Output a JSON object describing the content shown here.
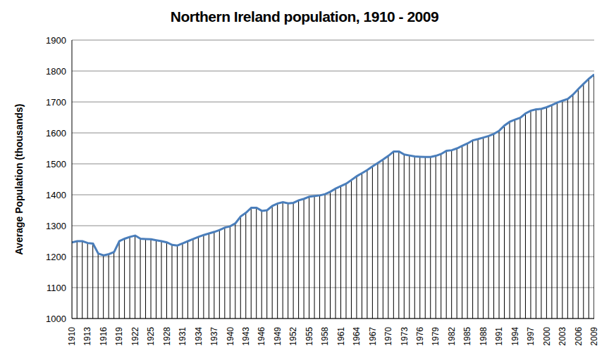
{
  "chart_data": {
    "type": "line",
    "title": "Northern Ireland population, 1910 - 2009",
    "y_label": "Average Population (thousands)",
    "color": "#4a7ebb",
    "marker": "dropline",
    "grid": true,
    "x": [
      1910,
      1911,
      1912,
      1913,
      1914,
      1915,
      1916,
      1917,
      1918,
      1919,
      1920,
      1921,
      1922,
      1923,
      1924,
      1925,
      1926,
      1927,
      1928,
      1929,
      1930,
      1931,
      1932,
      1933,
      1934,
      1935,
      1936,
      1937,
      1938,
      1939,
      1940,
      1941,
      1942,
      1943,
      1944,
      1945,
      1946,
      1947,
      1948,
      1949,
      1950,
      1951,
      1952,
      1953,
      1954,
      1955,
      1956,
      1957,
      1958,
      1959,
      1960,
      1961,
      1962,
      1963,
      1964,
      1965,
      1966,
      1967,
      1968,
      1969,
      1970,
      1971,
      1972,
      1973,
      1974,
      1975,
      1976,
      1977,
      1978,
      1979,
      1980,
      1981,
      1982,
      1983,
      1984,
      1985,
      1986,
      1987,
      1988,
      1989,
      1990,
      1991,
      1992,
      1993,
      1994,
      1995,
      1996,
      1997,
      1998,
      1999,
      2000,
      2001,
      2002,
      2003,
      2004,
      2005,
      2006,
      2007,
      2008,
      2009
    ],
    "values": [
      1246,
      1250,
      1250,
      1244,
      1242,
      1210,
      1204,
      1208,
      1215,
      1250,
      1258,
      1264,
      1268,
      1258,
      1257,
      1256,
      1253,
      1250,
      1246,
      1238,
      1236,
      1243,
      1250,
      1257,
      1264,
      1270,
      1275,
      1280,
      1286,
      1294,
      1298,
      1308,
      1330,
      1342,
      1358,
      1358,
      1348,
      1350,
      1364,
      1372,
      1376,
      1372,
      1374,
      1382,
      1387,
      1394,
      1396,
      1398,
      1402,
      1410,
      1420,
      1428,
      1436,
      1448,
      1460,
      1470,
      1480,
      1492,
      1503,
      1514,
      1526,
      1540,
      1540,
      1530,
      1527,
      1524,
      1523,
      1522,
      1522,
      1526,
      1532,
      1542,
      1544,
      1550,
      1558,
      1566,
      1576,
      1580,
      1585,
      1590,
      1597,
      1607,
      1624,
      1636,
      1643,
      1649,
      1663,
      1672,
      1676,
      1678,
      1683,
      1690,
      1698,
      1704,
      1710,
      1724,
      1742,
      1759,
      1775,
      1789
    ],
    "xlim": [
      1910,
      2009
    ],
    "xticks": [
      1910,
      1913,
      1916,
      1919,
      1922,
      1925,
      1928,
      1931,
      1934,
      1937,
      1940,
      1943,
      1946,
      1949,
      1952,
      1955,
      1958,
      1961,
      1964,
      1967,
      1970,
      1973,
      1976,
      1979,
      1982,
      1985,
      1988,
      1991,
      1994,
      1997,
      2000,
      2003,
      2006,
      2009
    ],
    "ylim": [
      1000,
      1900
    ],
    "yticks": [
      1000,
      1100,
      1200,
      1300,
      1400,
      1500,
      1600,
      1700,
      1800,
      1900
    ]
  }
}
